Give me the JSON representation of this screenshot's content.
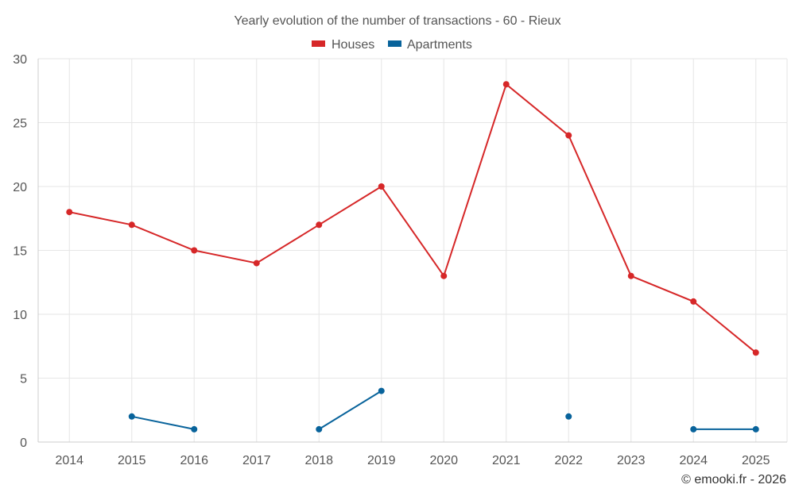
{
  "chart_data": {
    "type": "line",
    "title": "Yearly evolution of the number of transactions - 60 - Rieux",
    "xlabel": "",
    "ylabel": "",
    "categories": [
      "2014",
      "2015",
      "2016",
      "2017",
      "2018",
      "2019",
      "2020",
      "2021",
      "2022",
      "2023",
      "2024",
      "2025"
    ],
    "ylim": [
      0,
      30
    ],
    "yticks": [
      0,
      5,
      10,
      15,
      20,
      25,
      30
    ],
    "grid": true,
    "legend_position": "top-center",
    "series": [
      {
        "name": "Houses",
        "color": "#d62728",
        "values": [
          18,
          17,
          15,
          14,
          17,
          20,
          13,
          28,
          24,
          13,
          11,
          7
        ]
      },
      {
        "name": "Apartments",
        "color": "#08639b",
        "values": [
          null,
          2,
          1,
          null,
          1,
          4,
          null,
          null,
          2,
          null,
          1,
          1
        ]
      }
    ]
  },
  "credit": "© emooki.fr - 2026"
}
